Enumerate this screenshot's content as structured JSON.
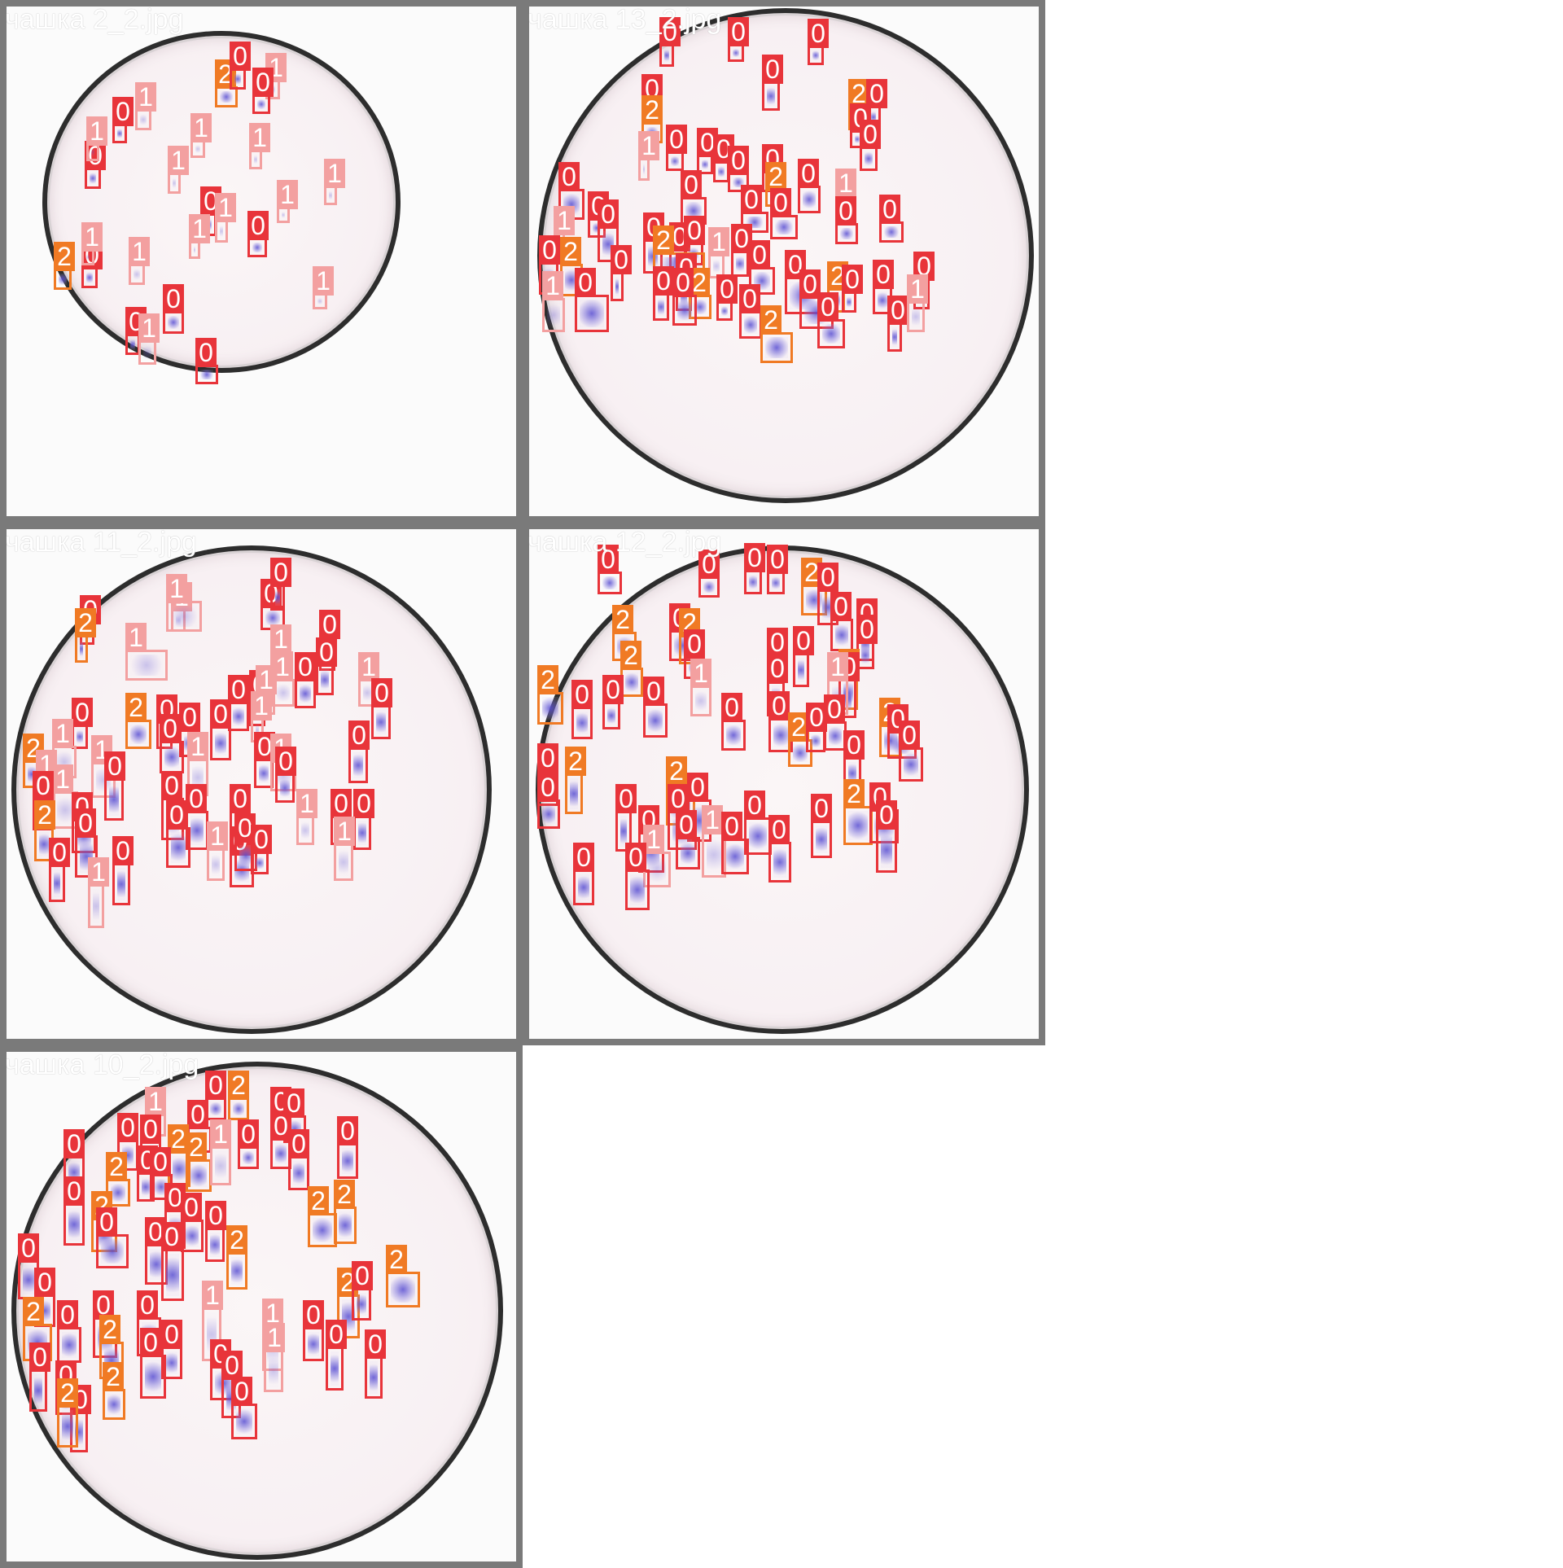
{
  "tiles": [
    {
      "title": "чашка 2_2.jpg",
      "detections": [
        {
          "cls": "2"
        },
        {
          "cls": "0"
        },
        {
          "cls": "1"
        },
        {
          "cls": "0"
        },
        {
          "cls": "1"
        },
        {
          "cls": "0"
        },
        {
          "cls": "1"
        },
        {
          "cls": "0"
        },
        {
          "cls": "1"
        },
        {
          "cls": "1"
        },
        {
          "cls": "1"
        },
        {
          "cls": "1"
        },
        {
          "cls": "0"
        },
        {
          "cls": "1"
        },
        {
          "cls": "1"
        },
        {
          "cls": "0"
        },
        {
          "cls": "1"
        },
        {
          "cls": "2"
        },
        {
          "cls": "0"
        },
        {
          "cls": "1"
        },
        {
          "cls": "1"
        },
        {
          "cls": "0"
        },
        {
          "cls": "0"
        },
        {
          "cls": "1"
        },
        {
          "cls": "1"
        },
        {
          "cls": "0"
        }
      ]
    },
    {
      "title": "чашка 13_2.jpg",
      "detections": [
        {
          "cls": "0"
        },
        {
          "cls": "0"
        },
        {
          "cls": "0"
        },
        {
          "cls": "0"
        },
        {
          "cls": "2"
        },
        {
          "cls": "0"
        },
        {
          "cls": "0"
        },
        {
          "cls": "2"
        },
        {
          "cls": "0"
        },
        {
          "cls": "1"
        },
        {
          "cls": "0"
        },
        {
          "cls": "0"
        },
        {
          "cls": "0"
        },
        {
          "cls": "0"
        },
        {
          "cls": "0"
        },
        {
          "cls": "0"
        },
        {
          "cls": "0"
        },
        {
          "cls": "0"
        },
        {
          "cls": "2"
        },
        {
          "cls": "1"
        },
        {
          "cls": "0"
        },
        {
          "cls": "0"
        },
        {
          "cls": "0"
        },
        {
          "cls": "0"
        },
        {
          "cls": "1"
        },
        {
          "cls": "0"
        },
        {
          "cls": "0"
        },
        {
          "cls": "0"
        },
        {
          "cls": "0"
        },
        {
          "cls": "0"
        },
        {
          "cls": "0"
        },
        {
          "cls": "2"
        },
        {
          "cls": "1"
        },
        {
          "cls": "0"
        },
        {
          "cls": "2"
        },
        {
          "cls": "0"
        },
        {
          "cls": "0"
        },
        {
          "cls": "0"
        },
        {
          "cls": "0"
        },
        {
          "cls": "2"
        },
        {
          "cls": "0"
        },
        {
          "cls": "2"
        },
        {
          "cls": "0"
        },
        {
          "cls": "1"
        },
        {
          "cls": "0"
        },
        {
          "cls": "0"
        },
        {
          "cls": "0"
        },
        {
          "cls": "0"
        },
        {
          "cls": "0"
        },
        {
          "cls": "2"
        },
        {
          "cls": "0"
        },
        {
          "cls": "0"
        },
        {
          "cls": "0"
        },
        {
          "cls": "0"
        },
        {
          "cls": "0"
        },
        {
          "cls": "1"
        }
      ]
    },
    {
      "title": "чашка 11_2.jpg",
      "detections": [
        {
          "cls": "1"
        },
        {
          "cls": "1"
        },
        {
          "cls": "0"
        },
        {
          "cls": "0"
        },
        {
          "cls": "0"
        },
        {
          "cls": "2"
        },
        {
          "cls": "1"
        },
        {
          "cls": "0"
        },
        {
          "cls": "1"
        },
        {
          "cls": "0"
        },
        {
          "cls": "1"
        },
        {
          "cls": "0"
        },
        {
          "cls": "1"
        },
        {
          "cls": "0"
        },
        {
          "cls": "0"
        },
        {
          "cls": "1"
        },
        {
          "cls": "0"
        },
        {
          "cls": "2"
        },
        {
          "cls": "0"
        },
        {
          "cls": "0"
        },
        {
          "cls": "0"
        },
        {
          "cls": "0"
        },
        {
          "cls": "1"
        },
        {
          "cls": "1"
        },
        {
          "cls": "2"
        },
        {
          "cls": "0"
        },
        {
          "cls": "1"
        },
        {
          "cls": "1"
        },
        {
          "cls": "0"
        },
        {
          "cls": "1"
        },
        {
          "cls": "0"
        },
        {
          "cls": "0"
        },
        {
          "cls": "1"
        },
        {
          "cls": "1"
        },
        {
          "cls": "0"
        },
        {
          "cls": "0"
        },
        {
          "cls": "2"
        },
        {
          "cls": "0"
        },
        {
          "cls": "0"
        },
        {
          "cls": "0"
        },
        {
          "cls": "0"
        },
        {
          "cls": "1"
        },
        {
          "cls": "0"
        },
        {
          "cls": "0"
        },
        {
          "cls": "0"
        },
        {
          "cls": "0"
        },
        {
          "cls": "1"
        },
        {
          "cls": "0"
        },
        {
          "cls": "0"
        },
        {
          "cls": "0"
        },
        {
          "cls": "1"
        },
        {
          "cls": "0"
        },
        {
          "cls": "0"
        },
        {
          "cls": "1"
        }
      ]
    },
    {
      "title": "чашка 12_2.jpg",
      "detections": [
        {
          "cls": "0"
        },
        {
          "cls": "0"
        },
        {
          "cls": "0"
        },
        {
          "cls": "0"
        },
        {
          "cls": "2"
        },
        {
          "cls": "0"
        },
        {
          "cls": "0"
        },
        {
          "cls": "0"
        },
        {
          "cls": "0"
        },
        {
          "cls": "2"
        },
        {
          "cls": "0"
        },
        {
          "cls": "2"
        },
        {
          "cls": "0"
        },
        {
          "cls": "0"
        },
        {
          "cls": "0"
        },
        {
          "cls": "2"
        },
        {
          "cls": "2"
        },
        {
          "cls": "1"
        },
        {
          "cls": "0"
        },
        {
          "cls": "0"
        },
        {
          "cls": "1"
        },
        {
          "cls": "2"
        },
        {
          "cls": "0"
        },
        {
          "cls": "0"
        },
        {
          "cls": "0"
        },
        {
          "cls": "0"
        },
        {
          "cls": "0"
        },
        {
          "cls": "2"
        },
        {
          "cls": "0"
        },
        {
          "cls": "0"
        },
        {
          "cls": "2"
        },
        {
          "cls": "0"
        },
        {
          "cls": "0"
        },
        {
          "cls": "0"
        },
        {
          "cls": "0"
        },
        {
          "cls": "2"
        },
        {
          "cls": "0"
        },
        {
          "cls": "2"
        },
        {
          "cls": "0"
        },
        {
          "cls": "0"
        },
        {
          "cls": "0"
        },
        {
          "cls": "0"
        },
        {
          "cls": "0"
        },
        {
          "cls": "1"
        },
        {
          "cls": "0"
        },
        {
          "cls": "0"
        },
        {
          "cls": "0"
        },
        {
          "cls": "0"
        },
        {
          "cls": "2"
        },
        {
          "cls": "0"
        },
        {
          "cls": "0"
        },
        {
          "cls": "1"
        },
        {
          "cls": "0"
        },
        {
          "cls": "0"
        }
      ]
    },
    {
      "title": "чашка 10_2.jpg",
      "detections": [
        {
          "cls": "0"
        },
        {
          "cls": "2"
        },
        {
          "cls": "1"
        },
        {
          "cls": "0"
        },
        {
          "cls": "0"
        },
        {
          "cls": "0"
        },
        {
          "cls": "0"
        },
        {
          "cls": "0"
        },
        {
          "cls": "2"
        },
        {
          "cls": "2"
        },
        {
          "cls": "1"
        },
        {
          "cls": "0"
        },
        {
          "cls": "0"
        },
        {
          "cls": "0"
        },
        {
          "cls": "0"
        },
        {
          "cls": "0"
        },
        {
          "cls": "2"
        },
        {
          "cls": "0"
        },
        {
          "cls": "0"
        },
        {
          "cls": "2"
        },
        {
          "cls": "0"
        },
        {
          "cls": "0"
        },
        {
          "cls": "0"
        },
        {
          "cls": "2"
        },
        {
          "cls": "2"
        },
        {
          "cls": "0"
        },
        {
          "cls": "0"
        },
        {
          "cls": "0"
        },
        {
          "cls": "0"
        },
        {
          "cls": "2"
        },
        {
          "cls": "0"
        },
        {
          "cls": "0"
        },
        {
          "cls": "2"
        },
        {
          "cls": "2"
        },
        {
          "cls": "0"
        },
        {
          "cls": "0"
        },
        {
          "cls": "1"
        },
        {
          "cls": "2"
        },
        {
          "cls": "0"
        },
        {
          "cls": "0"
        },
        {
          "cls": "1"
        },
        {
          "cls": "1"
        },
        {
          "cls": "0"
        },
        {
          "cls": "0"
        },
        {
          "cls": "0"
        },
        {
          "cls": "2"
        },
        {
          "cls": "0"
        },
        {
          "cls": "0"
        },
        {
          "cls": "0"
        },
        {
          "cls": "2"
        },
        {
          "cls": "0"
        },
        {
          "cls": "0"
        },
        {
          "cls": "0"
        },
        {
          "cls": "0"
        },
        {
          "cls": "0"
        },
        {
          "cls": "2"
        }
      ]
    }
  ],
  "colors": {
    "class_0": "#e8343a",
    "class_1": "#f3a0a0",
    "class_2": "#f07a24"
  }
}
